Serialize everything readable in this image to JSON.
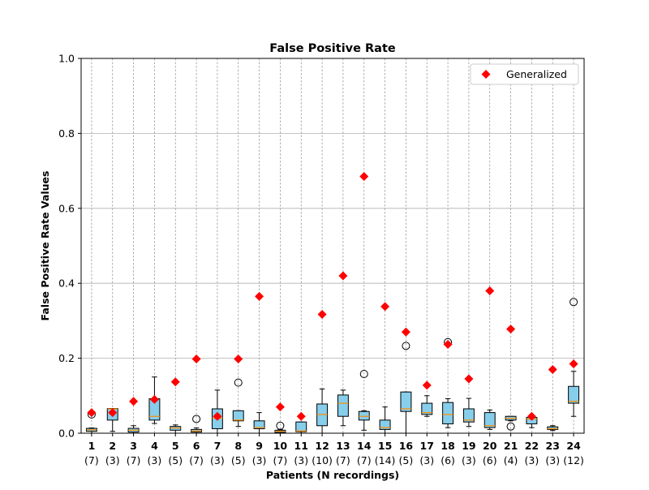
{
  "chart_data": {
    "type": "box",
    "title": "False Positive Rate",
    "xlabel": "Patients (N recordings)",
    "ylabel": "False Positive Rate Values",
    "ylim": [
      0,
      1.0
    ],
    "yticks": [
      "0.0",
      "0.2",
      "0.4",
      "0.6",
      "0.8",
      "1.0"
    ],
    "grid": true,
    "legend": {
      "position": "top-right",
      "label": "Generalized"
    },
    "colors": {
      "box_fill": "#87ceeb",
      "median": "#ff8c00",
      "marker": "#ff0000",
      "grid": "#b0b0b0"
    },
    "categories": [
      "1",
      "2",
      "3",
      "4",
      "5",
      "6",
      "7",
      "8",
      "9",
      "10",
      "11",
      "12",
      "13",
      "14",
      "15",
      "16",
      "17",
      "18",
      "19",
      "20",
      "21",
      "22",
      "23",
      "24"
    ],
    "recordings": [
      "(7)",
      "(3)",
      "(7)",
      "(3)",
      "(5)",
      "(7)",
      "(3)",
      "(5)",
      "(3)",
      "(7)",
      "(3)",
      "(10)",
      "(7)",
      "(7)",
      "(14)",
      "(5)",
      "(3)",
      "(6)",
      "(3)",
      "(6)",
      "(4)",
      "(3)",
      "(3)",
      "(12)"
    ],
    "boxes": [
      {
        "min": 0.0,
        "q1": 0.005,
        "median": 0.009,
        "q3": 0.013,
        "max": 0.014,
        "outliers": [
          0.05
        ]
      },
      {
        "min": 0.005,
        "q1": 0.035,
        "median": 0.065,
        "q3": 0.066,
        "max": 0.066,
        "outliers": []
      },
      {
        "min": 0.0,
        "q1": 0.003,
        "median": 0.008,
        "q3": 0.013,
        "max": 0.02,
        "outliers": []
      },
      {
        "min": 0.026,
        "q1": 0.035,
        "median": 0.045,
        "q3": 0.092,
        "max": 0.15,
        "outliers": []
      },
      {
        "min": 0.0,
        "q1": 0.008,
        "median": 0.014,
        "q3": 0.018,
        "max": 0.022,
        "outliers": []
      },
      {
        "min": 0.0,
        "q1": 0.003,
        "median": 0.006,
        "q3": 0.01,
        "max": 0.014,
        "outliers": [
          0.038
        ]
      },
      {
        "min": 0.0,
        "q1": 0.012,
        "median": 0.04,
        "q3": 0.065,
        "max": 0.115,
        "outliers": []
      },
      {
        "min": 0.018,
        "q1": 0.033,
        "median": 0.035,
        "q3": 0.06,
        "max": 0.06,
        "outliers": [
          0.135
        ]
      },
      {
        "min": 0.0,
        "q1": 0.012,
        "median": 0.015,
        "q3": 0.033,
        "max": 0.055,
        "outliers": []
      },
      {
        "min": 0.0,
        "q1": 0.002,
        "median": 0.005,
        "q3": 0.008,
        "max": 0.01,
        "outliers": [
          0.02
        ]
      },
      {
        "min": 0.0,
        "q1": 0.004,
        "median": 0.006,
        "q3": 0.03,
        "max": 0.03,
        "outliers": []
      },
      {
        "min": 0.0,
        "q1": 0.02,
        "median": 0.05,
        "q3": 0.078,
        "max": 0.118,
        "outliers": []
      },
      {
        "min": 0.02,
        "q1": 0.045,
        "median": 0.08,
        "q3": 0.102,
        "max": 0.115,
        "outliers": []
      },
      {
        "min": 0.008,
        "q1": 0.035,
        "median": 0.045,
        "q3": 0.058,
        "max": 0.06,
        "outliers": [
          0.158
        ]
      },
      {
        "min": 0.0,
        "q1": 0.01,
        "median": 0.015,
        "q3": 0.035,
        "max": 0.07,
        "outliers": []
      },
      {
        "min": 0.0,
        "q1": 0.058,
        "median": 0.065,
        "q3": 0.11,
        "max": 0.11,
        "outliers": [
          0.233
        ]
      },
      {
        "min": 0.045,
        "q1": 0.05,
        "median": 0.055,
        "q3": 0.08,
        "max": 0.1,
        "outliers": []
      },
      {
        "min": 0.015,
        "q1": 0.025,
        "median": 0.05,
        "q3": 0.082,
        "max": 0.092,
        "outliers": [
          0.243
        ]
      },
      {
        "min": 0.018,
        "q1": 0.03,
        "median": 0.035,
        "q3": 0.065,
        "max": 0.093,
        "outliers": []
      },
      {
        "min": 0.01,
        "q1": 0.015,
        "median": 0.02,
        "q3": 0.055,
        "max": 0.062,
        "outliers": []
      },
      {
        "min": 0.033,
        "q1": 0.035,
        "median": 0.04,
        "q3": 0.045,
        "max": 0.045,
        "outliers": [
          0.018
        ]
      },
      {
        "min": 0.015,
        "q1": 0.025,
        "median": 0.038,
        "q3": 0.042,
        "max": 0.045,
        "outliers": []
      },
      {
        "min": 0.007,
        "q1": 0.01,
        "median": 0.012,
        "q3": 0.017,
        "max": 0.02,
        "outliers": []
      },
      {
        "min": 0.045,
        "q1": 0.08,
        "median": 0.085,
        "q3": 0.125,
        "max": 0.165,
        "outliers": [
          0.35
        ]
      }
    ],
    "series": [
      {
        "name": "Generalized",
        "type": "scatter",
        "values": [
          0.055,
          0.055,
          0.085,
          0.09,
          0.137,
          0.198,
          0.045,
          0.198,
          0.365,
          0.07,
          0.045,
          0.317,
          0.42,
          0.685,
          0.338,
          0.27,
          0.128,
          0.237,
          0.145,
          0.38,
          0.278,
          0.045,
          0.17,
          0.185
        ]
      }
    ]
  }
}
